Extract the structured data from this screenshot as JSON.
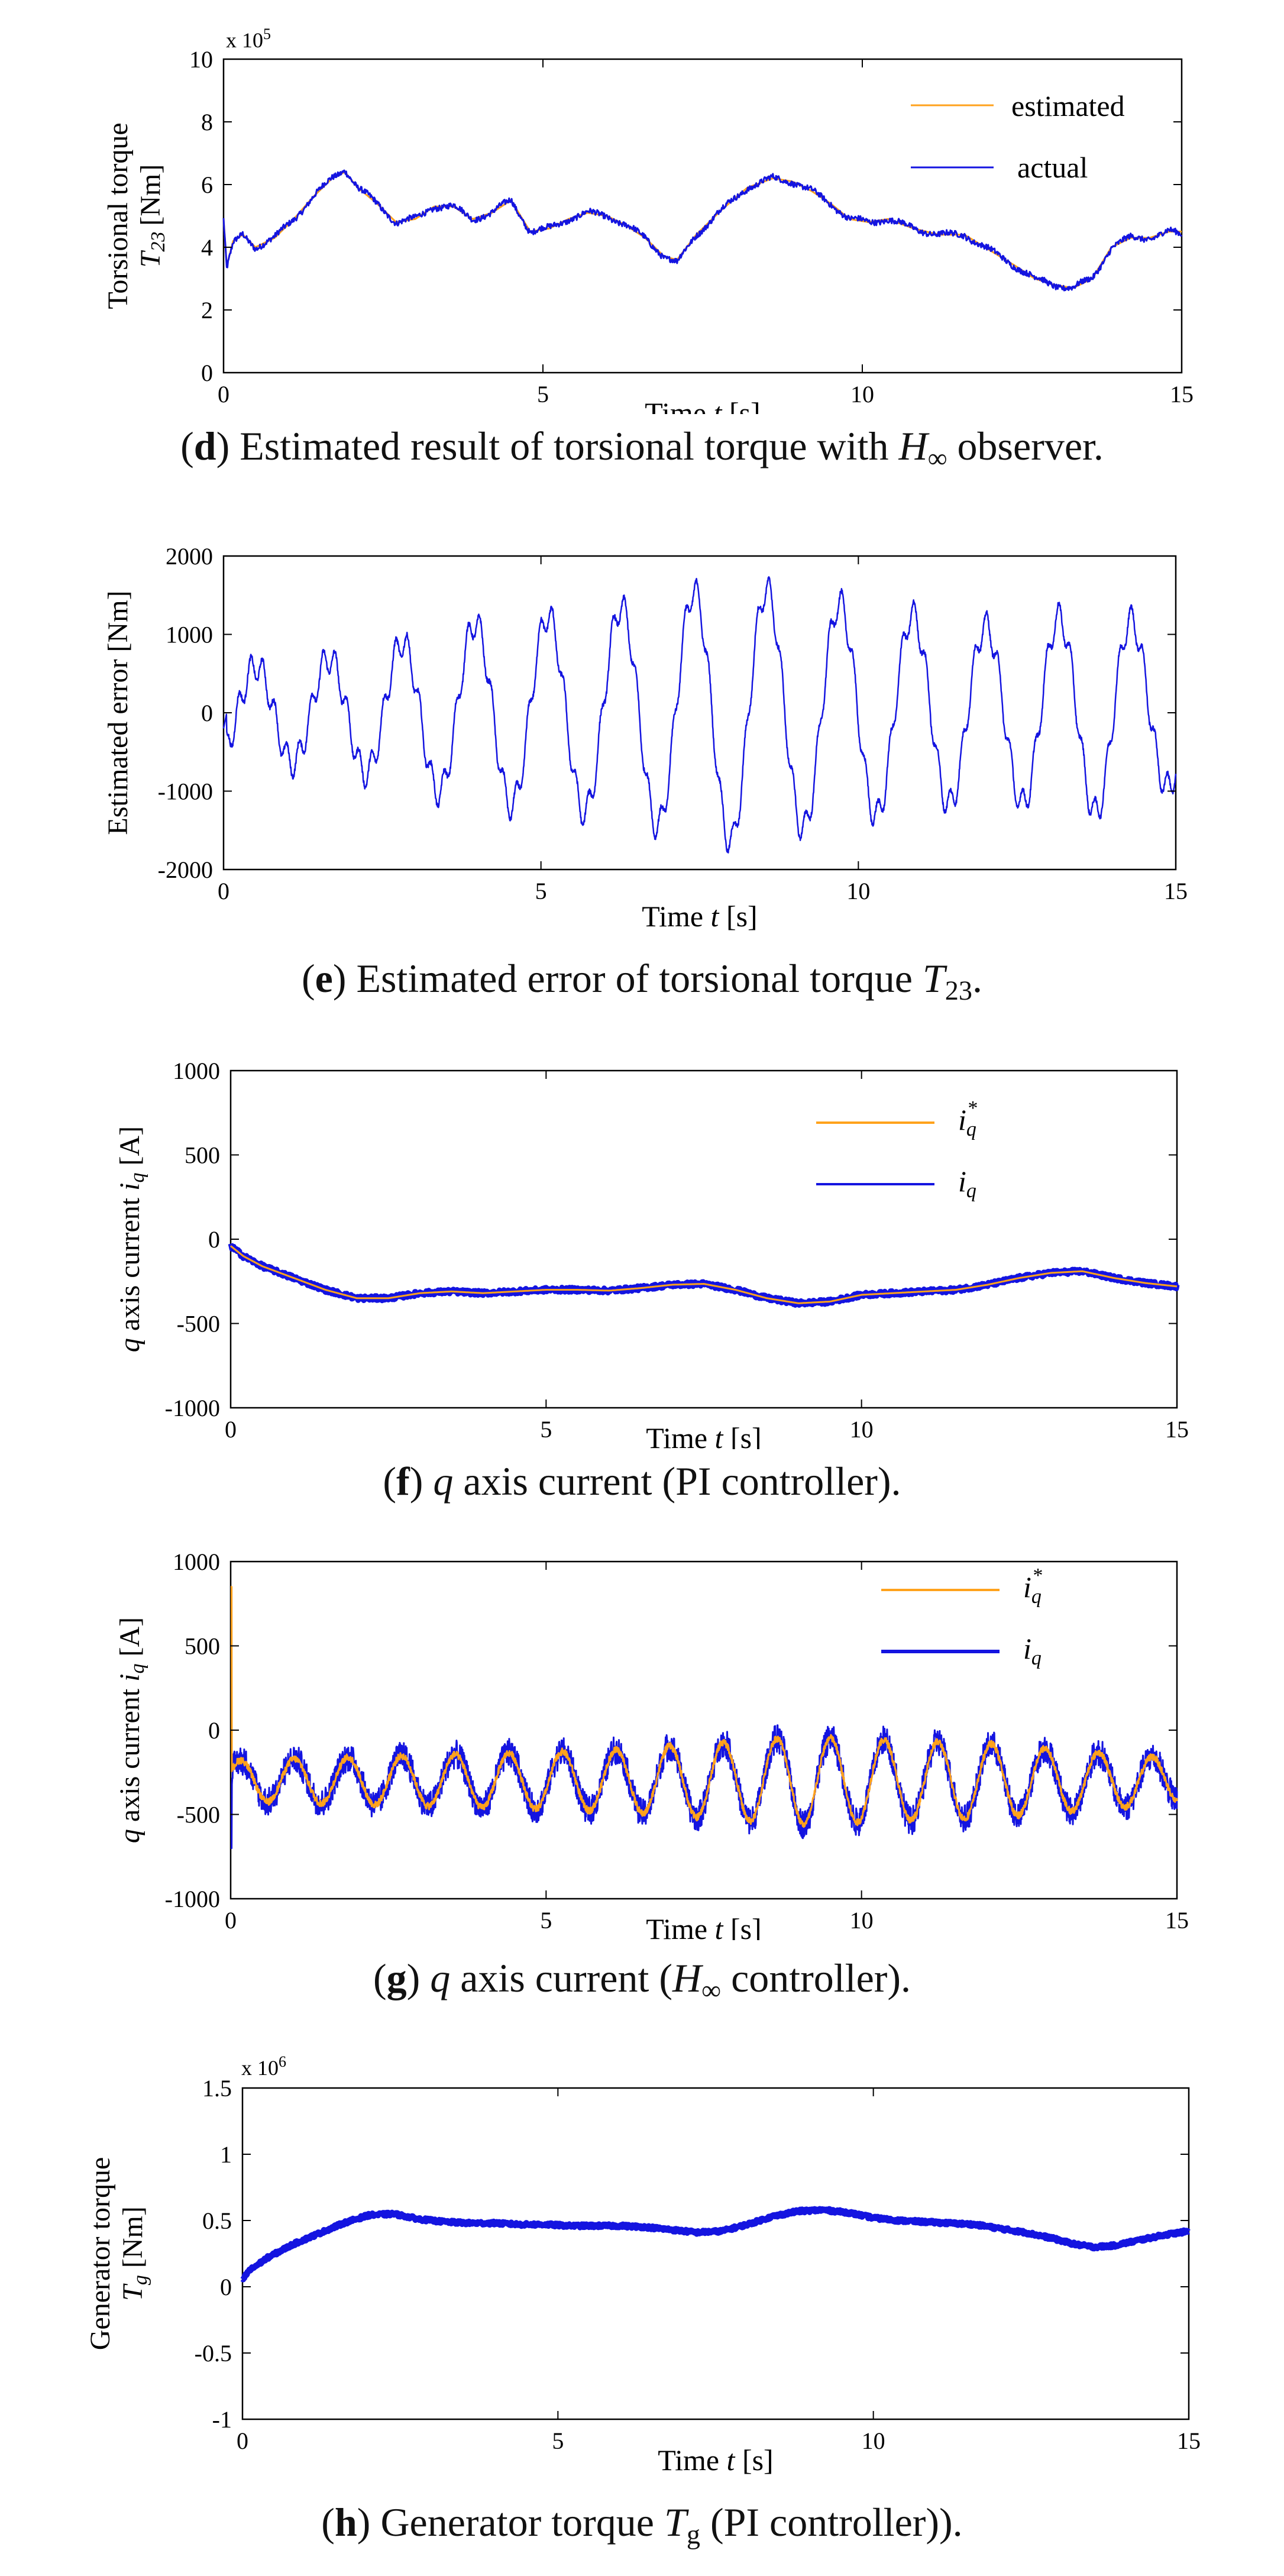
{
  "colors": {
    "estimated": "#ffa21c",
    "actual": "#1414e0",
    "axis": "#000000",
    "background": "#ffffff"
  },
  "chart_data": [
    {
      "id": "d",
      "type": "line",
      "title": "",
      "ylabel_line1": "Torsional torque",
      "ylabel_line2_main": "T",
      "ylabel_line2_sub": "23",
      "ylabel_line2_unit": "[Nm]",
      "xlabel_main": "Time ",
      "xlabel_var": "t",
      "xlabel_unit": " [s]",
      "multiplier": "x 10",
      "multiplier_exp": "5",
      "xlim": [
        0,
        15
      ],
      "ylim": [
        0,
        10
      ],
      "xticks": [
        "0",
        "5",
        "10",
        "15"
      ],
      "yticks": [
        "0",
        "2",
        "4",
        "6",
        "8",
        "10"
      ],
      "legend_position": "top-right",
      "series": [
        {
          "name": "estimated",
          "color_key": "estimated",
          "t": [
            0,
            0.05,
            0.15,
            0.3,
            0.5,
            0.8,
            1.1,
            1.4,
            1.7,
            1.9,
            2.1,
            2.4,
            2.7,
            3.0,
            3.3,
            3.6,
            3.9,
            4.2,
            4.5,
            4.8,
            5.1,
            5.4,
            5.7,
            6.0,
            6.3,
            6.6,
            6.9,
            7.1,
            7.4,
            7.8,
            8.2,
            8.6,
            8.9,
            9.2,
            9.5,
            9.8,
            10.1,
            10.4,
            10.8,
            11.2,
            11.6,
            12.0,
            12.4,
            12.7,
            13.0,
            13.3,
            13.6,
            13.9,
            14.2,
            14.5,
            14.8,
            15.0
          ],
          "values": [
            4.9,
            3.4,
            4.2,
            4.4,
            4.0,
            4.3,
            4.9,
            5.6,
            6.2,
            6.4,
            5.9,
            5.4,
            4.8,
            4.9,
            5.3,
            5.3,
            4.9,
            5.1,
            5.5,
            4.5,
            4.6,
            4.9,
            5.1,
            5.0,
            4.7,
            4.3,
            3.7,
            3.6,
            4.4,
            5.2,
            5.9,
            6.2,
            6.1,
            5.8,
            5.4,
            4.9,
            4.8,
            4.9,
            4.6,
            4.4,
            4.4,
            3.9,
            3.4,
            3.0,
            2.8,
            2.7,
            3.0,
            4.0,
            4.3,
            4.3,
            4.5,
            4.5
          ]
        },
        {
          "name": "actual",
          "color_key": "actual",
          "t": [
            0,
            0.05,
            0.15,
            0.3,
            0.5,
            0.8,
            1.1,
            1.4,
            1.7,
            1.9,
            2.1,
            2.4,
            2.7,
            3.0,
            3.3,
            3.6,
            3.9,
            4.2,
            4.5,
            4.8,
            5.1,
            5.4,
            5.7,
            6.0,
            6.3,
            6.6,
            6.9,
            7.1,
            7.4,
            7.8,
            8.2,
            8.6,
            8.9,
            9.2,
            9.5,
            9.8,
            10.1,
            10.4,
            10.8,
            11.2,
            11.6,
            12.0,
            12.4,
            12.7,
            13.0,
            13.3,
            13.6,
            13.9,
            14.2,
            14.5,
            14.8,
            15.0
          ],
          "values": [
            4.9,
            3.3,
            4.1,
            4.4,
            4.0,
            4.3,
            4.9,
            5.6,
            6.2,
            6.5,
            5.9,
            5.4,
            4.8,
            4.9,
            5.3,
            5.3,
            4.9,
            5.1,
            5.5,
            4.5,
            4.6,
            4.9,
            5.1,
            5.0,
            4.7,
            4.3,
            3.7,
            3.5,
            4.4,
            5.2,
            5.9,
            6.2,
            6.1,
            5.8,
            5.4,
            4.9,
            4.8,
            4.9,
            4.6,
            4.4,
            4.4,
            3.9,
            3.4,
            3.0,
            2.8,
            2.7,
            3.0,
            4.0,
            4.3,
            4.3,
            4.5,
            4.4
          ],
          "noise": 0.09
        }
      ]
    },
    {
      "id": "e",
      "type": "line",
      "ylabel_line1": "Estimated error [Nm]",
      "xlabel_main": "Time ",
      "xlabel_var": "t",
      "xlabel_unit": " [s]",
      "xlim": [
        0,
        15
      ],
      "ylim": [
        -2000,
        2000
      ],
      "xticks": [
        "0",
        "5",
        "10",
        "15"
      ],
      "yticks": [
        "-2000",
        "-1000",
        "0",
        "1000",
        "2000"
      ],
      "legend_position": "none",
      "series": [
        {
          "name": "error",
          "color_key": "actual",
          "osc_period_s": 1.15,
          "envelope_t": [
            0,
            2,
            4,
            6,
            8,
            10,
            12,
            14,
            15
          ],
          "envelope_amp": [
            550,
            720,
            1150,
            1300,
            1650,
            1350,
            1100,
            1300,
            900
          ],
          "ripple_amp": 180,
          "ripple_period_s": 0.19
        }
      ]
    },
    {
      "id": "f",
      "type": "line",
      "ylabel_main": "q",
      "ylabel_text": " axis current ",
      "ylabel_var": "i",
      "ylabel_sub": "q",
      "ylabel_unit": " [A]",
      "xlabel_main": "Time ",
      "xlabel_var": "t",
      "xlabel_unit": " [s]",
      "xlim": [
        0,
        15
      ],
      "ylim": [
        -1000,
        1000
      ],
      "xticks": [
        "0",
        "5",
        "10",
        "15"
      ],
      "yticks": [
        "-1000",
        "-500",
        "0",
        "500",
        "1000"
      ],
      "legend_position": "top-right",
      "series": [
        {
          "name": "i",
          "sub": "q",
          "sup": "*",
          "color_key": "estimated",
          "t": [
            0,
            0.2,
            0.5,
            1.0,
            1.5,
            2.0,
            2.5,
            3.0,
            3.5,
            4.0,
            4.5,
            5.0,
            5.5,
            6.0,
            6.5,
            7.0,
            7.5,
            8.0,
            8.5,
            9.0,
            9.5,
            10.0,
            10.5,
            11.0,
            11.5,
            12.0,
            12.5,
            13.0,
            13.5,
            14.0,
            14.5,
            15.0
          ],
          "values": [
            -40,
            -100,
            -160,
            -230,
            -300,
            -350,
            -350,
            -320,
            -310,
            -320,
            -310,
            -300,
            -300,
            -305,
            -290,
            -270,
            -265,
            -300,
            -350,
            -380,
            -370,
            -330,
            -320,
            -310,
            -300,
            -270,
            -230,
            -200,
            -190,
            -230,
            -260,
            -280
          ]
        },
        {
          "name": "i",
          "sub": "q",
          "sup": "",
          "color_key": "actual",
          "t": [
            0,
            0.2,
            0.5,
            1.0,
            1.5,
            2.0,
            2.5,
            3.0,
            3.5,
            4.0,
            4.5,
            5.0,
            5.5,
            6.0,
            6.5,
            7.0,
            7.5,
            8.0,
            8.5,
            9.0,
            9.5,
            10.0,
            10.5,
            11.0,
            11.5,
            12.0,
            12.5,
            13.0,
            13.5,
            14.0,
            14.5,
            15.0
          ],
          "values": [
            -40,
            -100,
            -160,
            -230,
            -300,
            -350,
            -350,
            -320,
            -310,
            -320,
            -310,
            -300,
            -300,
            -305,
            -290,
            -270,
            -265,
            -300,
            -350,
            -380,
            -370,
            -330,
            -320,
            -310,
            -300,
            -270,
            -230,
            -200,
            -190,
            -230,
            -260,
            -280
          ],
          "noise": 14
        }
      ]
    },
    {
      "id": "g",
      "type": "line",
      "ylabel_main": "q",
      "ylabel_text": " axis current ",
      "ylabel_var": "i",
      "ylabel_sub": "q",
      "ylabel_unit": " [A]",
      "xlabel_main": "Time ",
      "xlabel_var": "t",
      "xlabel_unit": " [s]",
      "xlim": [
        0,
        15
      ],
      "ylim": [
        -1000,
        1000
      ],
      "xticks": [
        "0",
        "5",
        "10",
        "15"
      ],
      "yticks": [
        "-1000",
        "-500",
        "0",
        "500",
        "1000"
      ],
      "legend_position": "top-right",
      "series": [
        {
          "name": "i",
          "sub": "q",
          "sup": "*",
          "color_key": "estimated",
          "mean": -300,
          "osc_period_s": 0.85,
          "envelope_t": [
            0,
            3,
            6,
            9,
            12,
            15
          ],
          "envelope_amp": [
            120,
            150,
            180,
            260,
            220,
            130
          ],
          "spike_value": 850,
          "noise": 20
        },
        {
          "name": "i",
          "sub": "q",
          "sup": "",
          "color_key": "actual",
          "mean": -300,
          "osc_period_s": 0.85,
          "envelope_t": [
            0,
            3,
            6,
            9,
            12,
            15
          ],
          "envelope_amp": [
            120,
            150,
            180,
            260,
            220,
            130
          ],
          "spike_value": -700,
          "noise": 85
        }
      ]
    },
    {
      "id": "h",
      "type": "line",
      "ylabel_line1": "Generator torque",
      "ylabel_line2_main": "T",
      "ylabel_line2_sub": "g",
      "ylabel_line2_unit": " [Nm]",
      "xlabel_main": "Time ",
      "xlabel_var": "t",
      "xlabel_unit": " [s]",
      "multiplier": "x 10",
      "multiplier_exp": "6",
      "xlim": [
        0,
        15
      ],
      "ylim": [
        -1,
        1.5
      ],
      "xticks": [
        "0",
        "5",
        "10",
        "15"
      ],
      "yticks": [
        "-1",
        "-0.5",
        "0",
        "0.5",
        "1",
        "1.5"
      ],
      "legend_position": "none",
      "series": [
        {
          "name": "Tg",
          "color_key": "actual",
          "t": [
            0,
            0.1,
            0.4,
            0.8,
            1.2,
            1.6,
            2.0,
            2.4,
            2.8,
            3.2,
            3.6,
            4.0,
            4.4,
            4.8,
            5.2,
            5.6,
            6.0,
            6.4,
            6.8,
            7.2,
            7.6,
            8.0,
            8.4,
            8.8,
            9.2,
            9.6,
            10.0,
            10.4,
            10.8,
            11.2,
            11.6,
            12.0,
            12.4,
            12.8,
            13.2,
            13.5,
            13.8,
            14.2,
            14.6,
            15.0
          ],
          "values": [
            0.05,
            0.12,
            0.22,
            0.32,
            0.4,
            0.48,
            0.54,
            0.55,
            0.51,
            0.49,
            0.48,
            0.48,
            0.47,
            0.47,
            0.46,
            0.46,
            0.46,
            0.45,
            0.43,
            0.41,
            0.42,
            0.47,
            0.53,
            0.57,
            0.58,
            0.56,
            0.52,
            0.5,
            0.49,
            0.48,
            0.47,
            0.44,
            0.41,
            0.37,
            0.32,
            0.3,
            0.31,
            0.35,
            0.39,
            0.42
          ],
          "noise": 0.012
        }
      ]
    }
  ],
  "captions": {
    "d": {
      "label": "d",
      "text": " Estimated result of torsional torque with ",
      "var": "H",
      "sub": "∞",
      "tail": " observer."
    },
    "e": {
      "label": "e",
      "text": " Estimated error of torsional torque ",
      "var": "T",
      "sub": "23",
      "tail": "."
    },
    "f": {
      "label": "f",
      "var_pre": "q",
      "text": " axis current (PI controller)."
    },
    "g": {
      "label": "g",
      "var_pre": "q",
      "text": " axis current (",
      "var": "H",
      "sub": "∞",
      "tail": " controller)."
    },
    "h": {
      "label": "h",
      "text": " Generator torque ",
      "var": "T",
      "sub": "g",
      "tail": " (PI controller))."
    }
  },
  "legends": {
    "d": [
      {
        "text": "estimated"
      },
      {
        "text": "actual"
      }
    ]
  }
}
